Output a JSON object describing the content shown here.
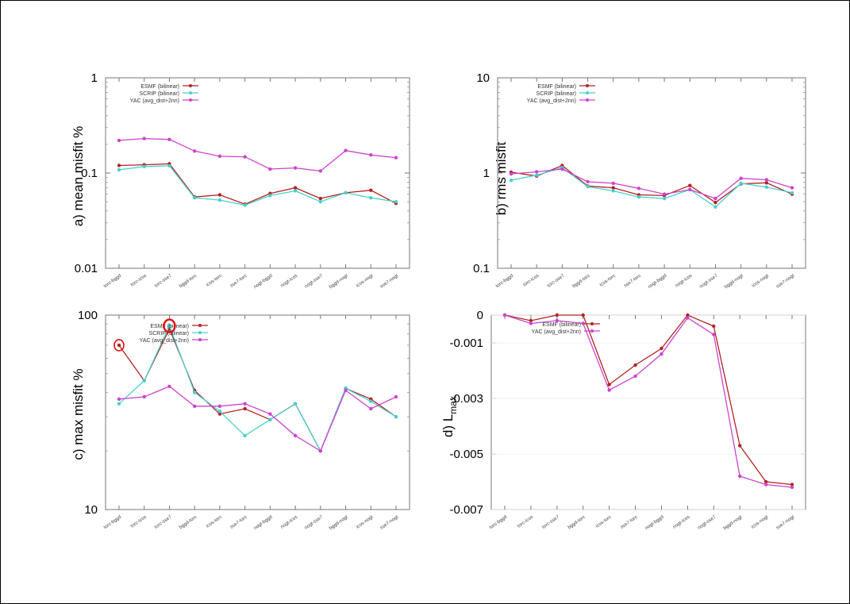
{
  "chart_data": [
    {
      "id": "a",
      "type": "line",
      "ylabel": "a) mean misfit %",
      "yscale": "log",
      "ylim": [
        0.01,
        1
      ],
      "yticks": [
        "1",
        "0.1",
        "0.01"
      ],
      "legend_position": "top-right",
      "categories": [
        "torc-bggd",
        "torc-icos",
        "torc-sse7",
        "bggd-torc",
        "icos-torc",
        "sse7-torc",
        "nogt-bggd",
        "nogt-icos",
        "nogt-sse7",
        "bggd-nogt",
        "icos-nogt",
        "sse7-nogt"
      ],
      "series": [
        {
          "name": "ESMF (bilinear)",
          "color": "#b22222",
          "values": [
            0.12,
            0.122,
            0.125,
            0.056,
            0.059,
            0.047,
            0.061,
            0.07,
            0.054,
            0.062,
            0.066,
            0.048
          ]
        },
        {
          "name": "SCRIP (bilinear)",
          "color": "#48d1cc",
          "values": [
            0.108,
            0.117,
            0.119,
            0.055,
            0.052,
            0.046,
            0.058,
            0.065,
            0.05,
            0.062,
            0.055,
            0.05
          ]
        },
        {
          "name": "YAC (avg_dist+2nn)",
          "color": "#cc44cc",
          "values": [
            0.22,
            0.23,
            0.225,
            0.17,
            0.15,
            0.148,
            0.11,
            0.113,
            0.105,
            0.172,
            0.155,
            0.145
          ]
        }
      ]
    },
    {
      "id": "b",
      "type": "line",
      "ylabel": "b) rms misfit",
      "yscale": "log",
      "ylim": [
        0.1,
        10
      ],
      "yticks": [
        "10",
        "1",
        "0.1"
      ],
      "legend_position": "top-right",
      "categories": [
        "torc-bggd",
        "torc-icos",
        "torc-sse7",
        "bggd-torc",
        "icos-torc",
        "sse7-torc",
        "nogt-bggd",
        "nogt-icos",
        "nogt-sse7",
        "bggd-nogt",
        "icos-nogt",
        "sse7-nogt"
      ],
      "series": [
        {
          "name": "ESMF (bilinear)",
          "color": "#b22222",
          "values": [
            1.02,
            0.93,
            1.2,
            0.73,
            0.7,
            0.59,
            0.58,
            0.74,
            0.49,
            0.77,
            0.79,
            0.6
          ]
        },
        {
          "name": "SCRIP (bilinear)",
          "color": "#48d1cc",
          "values": [
            0.84,
            0.95,
            1.14,
            0.72,
            0.65,
            0.56,
            0.54,
            0.67,
            0.44,
            0.78,
            0.71,
            0.62
          ]
        },
        {
          "name": "YAC (avg_dist+2nn)",
          "color": "#cc44cc",
          "values": [
            0.98,
            1.03,
            1.1,
            0.81,
            0.78,
            0.69,
            0.6,
            0.67,
            0.54,
            0.88,
            0.85,
            0.7
          ]
        }
      ]
    },
    {
      "id": "c",
      "type": "line",
      "ylabel": "c) max misfit %",
      "yscale": "log",
      "ylim": [
        10,
        100
      ],
      "yticks": [
        "100",
        "10"
      ],
      "legend_position": "top-right",
      "categories": [
        "torc-bggd",
        "torc-icos",
        "torc-sse7",
        "bggd-torc",
        "icos-torc",
        "sse7-torc",
        "nogt-bggd",
        "nogt-icos",
        "nogt-sse7",
        "bggd-nogt",
        "icos-nogt",
        "sse7-nogt"
      ],
      "series": [
        {
          "name": "ESMF (bilinear)",
          "color": "#b22222",
          "values": [
            70,
            46,
            85,
            41,
            31,
            33,
            29,
            35,
            20,
            42,
            37,
            30
          ]
        },
        {
          "name": "SCRIP (bilinear)",
          "color": "#48d1cc",
          "values": [
            35,
            46,
            88,
            40,
            32,
            24,
            29,
            35,
            20,
            42,
            36,
            30
          ]
        },
        {
          "name": "YAC (avg_dist+2nn)",
          "color": "#cc44cc",
          "values": [
            37,
            38,
            43,
            34,
            34,
            35,
            31,
            24,
            20,
            41,
            33,
            38
          ]
        }
      ]
    },
    {
      "id": "d",
      "type": "line",
      "ylabel": "d) L",
      "ylabel_sub": "max",
      "yscale": "linear",
      "ylim": [
        -0.007,
        0
      ],
      "yticks": [
        "0",
        "-0.001",
        "-0.003",
        "-0.005",
        "-0.007"
      ],
      "legend_position": "top-left",
      "categories": [
        "torc-bggd",
        "torc-icos",
        "torc-sse7",
        "bggd-torc",
        "icos-torc",
        "sse7-torc",
        "nogt-bggd",
        "nogt-icos",
        "nogt-sse7",
        "bggd-nogt",
        "icos-nogt",
        "sse7-nogt"
      ],
      "series": [
        {
          "name": "ESMF (bilinear)",
          "color": "#b22222",
          "values": [
            0,
            -0.0002,
            0,
            0,
            -0.0025,
            -0.0018,
            -0.0012,
            0,
            -0.0004,
            -0.0047,
            -0.006,
            -0.0061
          ]
        },
        {
          "name": "YAC (avg_dist+2nn)",
          "color": "#cc44cc",
          "values": [
            0,
            -0.0003,
            -0.0002,
            -0.0003,
            -0.0027,
            -0.0022,
            -0.0014,
            -0.0001,
            -0.0007,
            -0.0058,
            -0.0061,
            -0.0062
          ]
        }
      ]
    }
  ]
}
